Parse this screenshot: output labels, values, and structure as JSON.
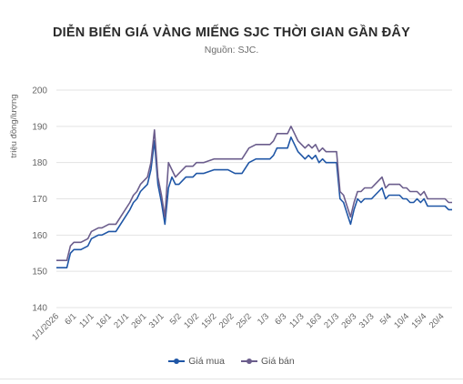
{
  "title": "DIỄN BIẾN GIÁ VÀNG MIẾNG SJC THỜI GIAN GẦN ĐÂY",
  "subtitle": "Nguồn: SJC.",
  "legend": {
    "buy": "Giá mua",
    "sell": "Giá bán"
  },
  "colors": {
    "buy": "#1f56a6",
    "sell": "#6b5d8c",
    "grid": "#e3e3e3",
    "text": "#666666"
  },
  "chart_data": {
    "type": "line",
    "title": "DIỄN BIẾN GIÁ VÀNG MIẾNG SJC THỜI GIAN GẦN ĐÂY",
    "ylabel": "triệu đồng/lượng",
    "xlabel": "",
    "ylim": [
      140,
      200
    ],
    "yticks": [
      140,
      150,
      160,
      170,
      180,
      190,
      200
    ],
    "grid": true,
    "legend_position": "bottom",
    "x_tick_labels": [
      "1/1/2026",
      "6/1",
      "11/1",
      "16/1",
      "21/1",
      "26/1",
      "31/1",
      "5/2",
      "10/2",
      "15/2",
      "20/2",
      "25/2",
      "1/3",
      "6/3",
      "11/3",
      "16/3",
      "21/3",
      "26/3",
      "31/3",
      "5/4",
      "10/4",
      "15/4",
      "20/4"
    ],
    "x_range_days": [
      0,
      113
    ],
    "series": [
      {
        "name": "Giá mua",
        "color": "#1f56a6",
        "x": [
          0,
          3,
          4,
          5,
          7,
          9,
          10,
          12,
          13,
          15,
          17,
          19,
          21,
          22,
          23,
          24,
          25,
          26,
          27,
          28,
          29,
          30,
          31,
          32,
          33,
          34,
          35,
          37,
          39,
          40,
          42,
          45,
          49,
          51,
          53,
          55,
          57,
          59,
          61,
          62,
          63,
          64,
          66,
          67,
          68,
          69,
          70,
          71,
          72,
          73,
          74,
          75,
          76,
          77,
          78,
          79,
          80,
          81,
          82,
          83,
          84,
          85,
          86,
          87,
          88,
          89,
          90,
          91,
          92,
          93,
          94,
          95,
          96,
          97,
          98,
          99,
          100,
          101,
          102,
          103,
          104,
          105,
          106,
          107,
          108,
          109,
          110,
          111,
          112,
          113
        ],
        "values": [
          151,
          151,
          155,
          156,
          156,
          157,
          159,
          160,
          160,
          161,
          161,
          164,
          167,
          169,
          170,
          172,
          173,
          174,
          178,
          186,
          174,
          169,
          163,
          173,
          176,
          174,
          174,
          176,
          176,
          177,
          177,
          178,
          178,
          177,
          177,
          180,
          181,
          181,
          181,
          182,
          184,
          184,
          184,
          187,
          185,
          183,
          182,
          181,
          182,
          181,
          182,
          180,
          181,
          180,
          180,
          180,
          180,
          170,
          169,
          166,
          163,
          167,
          170,
          169,
          170,
          170,
          170,
          171,
          172,
          173,
          170,
          171,
          171,
          171,
          171,
          170,
          170,
          169,
          169,
          170,
          169,
          170,
          168,
          168,
          168,
          168,
          168,
          168,
          167,
          167
        ]
      },
      {
        "name": "Giá bán",
        "color": "#6b5d8c",
        "x": [
          0,
          3,
          4,
          5,
          7,
          9,
          10,
          12,
          13,
          15,
          17,
          19,
          21,
          22,
          23,
          24,
          25,
          26,
          27,
          28,
          29,
          30,
          31,
          32,
          33,
          34,
          35,
          37,
          39,
          40,
          42,
          45,
          49,
          51,
          53,
          55,
          57,
          59,
          61,
          62,
          63,
          64,
          66,
          67,
          68,
          69,
          70,
          71,
          72,
          73,
          74,
          75,
          76,
          77,
          78,
          79,
          80,
          81,
          82,
          83,
          84,
          85,
          86,
          87,
          88,
          89,
          90,
          91,
          92,
          93,
          94,
          95,
          96,
          97,
          98,
          99,
          100,
          101,
          102,
          103,
          104,
          105,
          106,
          107,
          108,
          109,
          110,
          111,
          112,
          113
        ],
        "values": [
          153,
          153,
          157,
          158,
          158,
          159,
          161,
          162,
          162,
          163,
          163,
          166,
          169,
          171,
          172,
          174,
          175,
          176,
          180,
          189,
          176,
          171,
          165,
          180,
          178,
          176,
          177,
          179,
          179,
          180,
          180,
          181,
          181,
          181,
          181,
          184,
          185,
          185,
          185,
          186,
          188,
          188,
          188,
          190,
          188,
          186,
          185,
          184,
          185,
          184,
          185,
          183,
          184,
          183,
          183,
          183,
          183,
          172,
          171,
          168,
          165,
          169,
          172,
          172,
          173,
          173,
          173,
          174,
          175,
          176,
          173,
          174,
          174,
          174,
          174,
          173,
          173,
          172,
          172,
          172,
          171,
          172,
          170,
          170,
          170,
          170,
          170,
          170,
          169,
          169
        ]
      }
    ]
  }
}
